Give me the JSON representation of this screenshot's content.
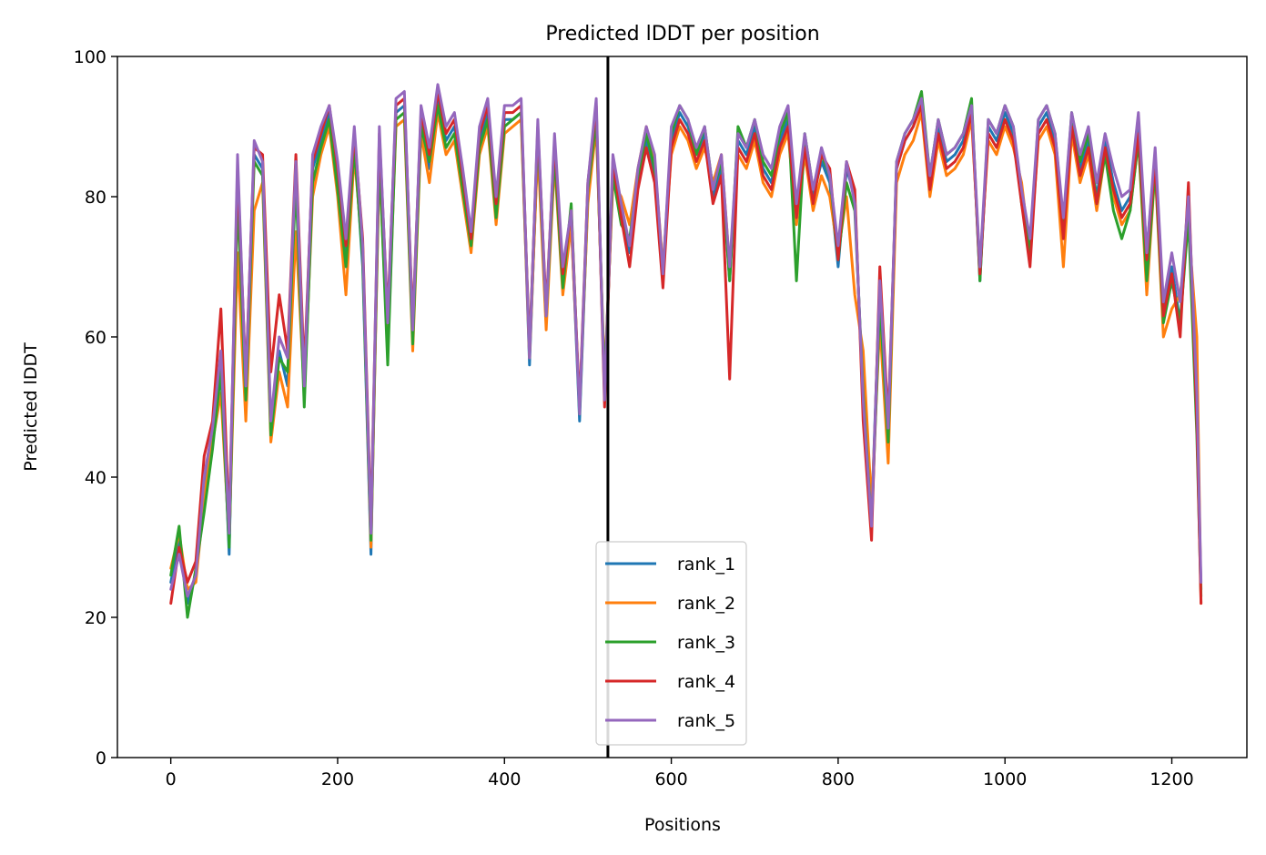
{
  "chart_data": {
    "type": "line",
    "title": "Predicted lDDT per position",
    "xlabel": "Positions",
    "ylabel": "Predicted lDDT",
    "xlim": [
      -64,
      1290
    ],
    "ylim": [
      0,
      100
    ],
    "xticks": [
      0,
      200,
      400,
      600,
      800,
      1000,
      1200
    ],
    "yticks": [
      0,
      20,
      40,
      60,
      80,
      100
    ],
    "vline_x": 524,
    "legend_position": "lower center",
    "grid": false,
    "x": [
      0,
      10,
      20,
      30,
      40,
      50,
      60,
      70,
      80,
      90,
      100,
      110,
      120,
      130,
      140,
      150,
      160,
      170,
      180,
      190,
      200,
      210,
      220,
      230,
      240,
      250,
      260,
      270,
      280,
      290,
      300,
      310,
      320,
      330,
      340,
      350,
      360,
      370,
      380,
      390,
      400,
      410,
      420,
      430,
      440,
      450,
      460,
      470,
      480,
      490,
      500,
      510,
      520,
      530,
      540,
      550,
      560,
      570,
      580,
      590,
      600,
      610,
      620,
      630,
      640,
      650,
      660,
      670,
      680,
      690,
      700,
      710,
      720,
      730,
      740,
      750,
      760,
      770,
      780,
      790,
      800,
      810,
      820,
      830,
      840,
      850,
      860,
      870,
      880,
      890,
      900,
      910,
      920,
      930,
      940,
      950,
      960,
      970,
      980,
      990,
      1000,
      1010,
      1020,
      1030,
      1040,
      1050,
      1060,
      1070,
      1080,
      1090,
      1100,
      1110,
      1120,
      1130,
      1140,
      1150,
      1160,
      1170,
      1180,
      1190,
      1200,
      1210,
      1220,
      1230,
      1235
    ],
    "series": [
      {
        "name": "rank_1",
        "color": "#1f77b4",
        "values": [
          25,
          31,
          22,
          26,
          38,
          46,
          57,
          29,
          82,
          52,
          86,
          84,
          47,
          58,
          53,
          84,
          51,
          84,
          88,
          92,
          83,
          72,
          88,
          70,
          29,
          88,
          61,
          92,
          93,
          60,
          91,
          84,
          94,
          88,
          90,
          82,
          73,
          88,
          92,
          78,
          91,
          91,
          92,
          56,
          88,
          62,
          87,
          68,
          77,
          48,
          80,
          92,
          52,
          84,
          78,
          72,
          82,
          88,
          83,
          68,
          88,
          92,
          90,
          86,
          89,
          80,
          84,
          68,
          88,
          86,
          90,
          84,
          82,
          88,
          91,
          78,
          88,
          80,
          85,
          82,
          70,
          84,
          80,
          50,
          34,
          68,
          46,
          84,
          88,
          90,
          94,
          82,
          90,
          85,
          86,
          88,
          93,
          68,
          90,
          88,
          92,
          89,
          80,
          71,
          90,
          92,
          88,
          75,
          91,
          84,
          88,
          80,
          88,
          82,
          78,
          80,
          90,
          72,
          86,
          64,
          70,
          62,
          78,
          50,
          24
        ]
      },
      {
        "name": "rank_2",
        "color": "#ff7f0e",
        "values": [
          27,
          32,
          24,
          25,
          37,
          45,
          52,
          31,
          72,
          48,
          78,
          82,
          45,
          55,
          50,
          75,
          52,
          80,
          86,
          90,
          80,
          66,
          86,
          72,
          30,
          85,
          58,
          90,
          91,
          58,
          89,
          82,
          92,
          86,
          88,
          80,
          72,
          86,
          90,
          76,
          89,
          90,
          91,
          57,
          87,
          61,
          85,
          66,
          76,
          50,
          79,
          90,
          54,
          82,
          80,
          76,
          84,
          90,
          85,
          70,
          86,
          90,
          88,
          84,
          87,
          82,
          86,
          70,
          86,
          84,
          88,
          82,
          80,
          86,
          89,
          76,
          86,
          78,
          83,
          80,
          72,
          80,
          66,
          58,
          36,
          62,
          42,
          82,
          86,
          88,
          92,
          80,
          88,
          83,
          84,
          86,
          91,
          70,
          88,
          86,
          90,
          87,
          82,
          72,
          88,
          90,
          86,
          70,
          89,
          82,
          86,
          78,
          86,
          80,
          76,
          78,
          88,
          66,
          84,
          60,
          64,
          66,
          76,
          60,
          22
        ]
      },
      {
        "name": "rank_3",
        "color": "#2ca02c",
        "values": [
          26,
          33,
          20,
          27,
          35,
          44,
          55,
          30,
          80,
          51,
          85,
          83,
          46,
          57,
          55,
          82,
          50,
          82,
          87,
          91,
          81,
          70,
          87,
          71,
          31,
          86,
          56,
          91,
          92,
          59,
          90,
          85,
          93,
          87,
          89,
          81,
          73,
          87,
          91,
          77,
          90,
          91,
          92,
          58,
          89,
          63,
          86,
          67,
          79,
          49,
          81,
          91,
          53,
          83,
          76,
          74,
          83,
          89,
          84,
          69,
          89,
          93,
          91,
          86,
          90,
          81,
          85,
          68,
          90,
          87,
          91,
          85,
          83,
          89,
          92,
          68,
          89,
          81,
          86,
          83,
          71,
          82,
          78,
          52,
          33,
          65,
          45,
          85,
          89,
          91,
          95,
          83,
          91,
          86,
          87,
          89,
          94,
          68,
          91,
          89,
          93,
          90,
          79,
          72,
          91,
          93,
          89,
          76,
          92,
          85,
          89,
          79,
          86,
          78,
          74,
          78,
          88,
          68,
          84,
          62,
          68,
          62,
          77,
          46,
          23
        ]
      },
      {
        "name": "rank_4",
        "color": "#d62728",
        "values": [
          22,
          30,
          25,
          28,
          43,
          48,
          64,
          33,
          84,
          54,
          87,
          86,
          55,
          66,
          58,
          86,
          55,
          85,
          89,
          93,
          84,
          73,
          89,
          74,
          33,
          89,
          63,
          93,
          94,
          62,
          92,
          86,
          95,
          89,
          91,
          83,
          74,
          89,
          93,
          79,
          92,
          92,
          93,
          58,
          90,
          64,
          88,
          69,
          78,
          50,
          82,
          93,
          50,
          85,
          77,
          70,
          81,
          87,
          82,
          67,
          87,
          91,
          89,
          85,
          88,
          79,
          83,
          54,
          87,
          85,
          89,
          83,
          81,
          87,
          90,
          77,
          87,
          79,
          86,
          84,
          71,
          85,
          81,
          48,
          31,
          70,
          48,
          84,
          88,
          90,
          93,
          81,
          89,
          84,
          85,
          87,
          92,
          69,
          89,
          87,
          91,
          88,
          79,
          70,
          89,
          91,
          87,
          74,
          90,
          83,
          87,
          79,
          87,
          81,
          77,
          79,
          89,
          71,
          85,
          63,
          69,
          60,
          82,
          48,
          22
        ]
      },
      {
        "name": "rank_5",
        "color": "#9467bd",
        "values": [
          24,
          29,
          23,
          26,
          40,
          47,
          58,
          32,
          86,
          53,
          88,
          85,
          48,
          60,
          57,
          85,
          53,
          86,
          90,
          93,
          85,
          74,
          90,
          73,
          32,
          90,
          62,
          94,
          95,
          61,
          93,
          87,
          96,
          90,
          92,
          84,
          75,
          90,
          94,
          80,
          93,
          93,
          94,
          57,
          91,
          63,
          89,
          70,
          78,
          49,
          82,
          94,
          51,
          86,
          79,
          73,
          84,
          90,
          86,
          69,
          90,
          93,
          91,
          87,
          90,
          81,
          86,
          70,
          89,
          87,
          91,
          86,
          84,
          90,
          93,
          79,
          89,
          81,
          87,
          83,
          73,
          85,
          79,
          51,
          33,
          68,
          47,
          85,
          89,
          91,
          94,
          83,
          91,
          86,
          87,
          89,
          93,
          70,
          91,
          89,
          93,
          90,
          81,
          74,
          91,
          93,
          89,
          77,
          92,
          86,
          90,
          82,
          89,
          84,
          80,
          81,
          92,
          72,
          87,
          65,
          72,
          65,
          80,
          52,
          25
        ]
      }
    ]
  }
}
